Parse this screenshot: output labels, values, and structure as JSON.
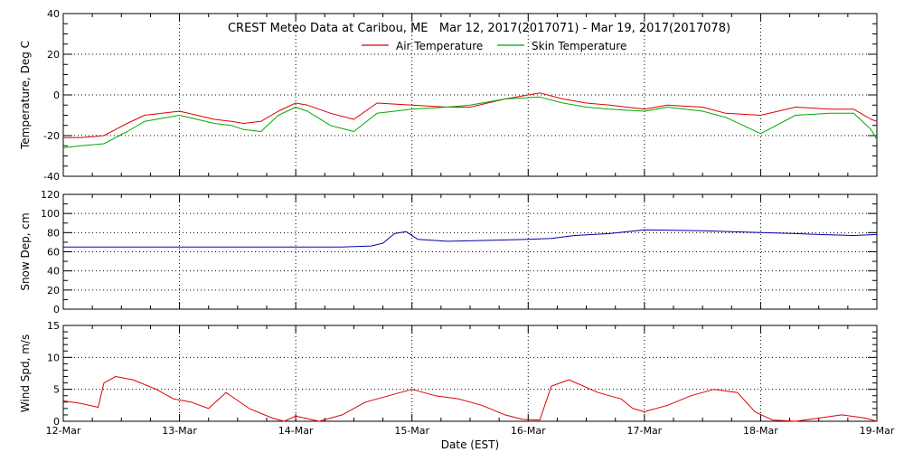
{
  "header": {
    "title": "CREST Meteo Data at Caribou, ME   Mar 12, 2017(2017071) - Mar 19, 2017(2017078)"
  },
  "colors": {
    "air": "#dd0000",
    "skin": "#00aa00",
    "snow": "#0000aa",
    "wind": "#dd0000",
    "axis": "#000000"
  },
  "chart_data": [
    {
      "type": "line",
      "ylabel": "Temperature, Deg C",
      "xlabel": "",
      "ylim": [
        -40,
        40
      ],
      "yticks": [
        "-40",
        "-20",
        "0",
        "20",
        "40"
      ],
      "x": [
        0,
        0.15,
        0.35,
        0.55,
        0.7,
        1.0,
        1.3,
        1.45,
        1.55,
        1.7,
        1.85,
        2.0,
        2.1,
        2.3,
        2.5,
        2.7,
        3.0,
        3.3,
        3.5,
        3.8,
        4.1,
        4.3,
        4.5,
        4.7,
        5.0,
        5.2,
        5.5,
        5.7,
        6.0,
        6.3,
        6.6,
        6.8,
        6.95,
        7.0
      ],
      "series": [
        {
          "name": "Air Temperature",
          "values": [
            -21,
            -21,
            -20,
            -14,
            -10,
            -8,
            -12,
            -13,
            -14,
            -13,
            -8,
            -4,
            -5,
            -9,
            -12,
            -4,
            -5,
            -6,
            -6,
            -2,
            1,
            -2,
            -4,
            -5,
            -7,
            -5,
            -6,
            -9,
            -10,
            -6,
            -7,
            -7,
            -12,
            -13
          ]
        },
        {
          "name": "Skin Temperature",
          "values": [
            -26,
            -25,
            -24,
            -18,
            -13,
            -10,
            -14,
            -15,
            -17,
            -18,
            -10,
            -6,
            -8,
            -15,
            -18,
            -9,
            -7,
            -6,
            -5,
            -2,
            -1,
            -4,
            -6,
            -7,
            -8,
            -6,
            -8,
            -11,
            -19,
            -10,
            -9,
            -9,
            -17,
            -22
          ]
        }
      ]
    },
    {
      "type": "line",
      "ylabel": "Snow Dep, cm",
      "xlabel": "",
      "ylim": [
        0,
        120
      ],
      "yticks": [
        "0",
        "20",
        "40",
        "60",
        "80",
        "100",
        "120"
      ],
      "x": [
        0,
        1.0,
        2.0,
        2.4,
        2.65,
        2.75,
        2.85,
        2.95,
        3.05,
        3.3,
        3.7,
        4.0,
        4.2,
        4.4,
        4.7,
        5.0,
        5.5,
        6.0,
        6.3,
        6.5,
        6.8,
        7.0
      ],
      "series": [
        {
          "name": "",
          "values": [
            65,
            65,
            65,
            65,
            66,
            69,
            79,
            81,
            73,
            71,
            72,
            73,
            74,
            77,
            79,
            83,
            82,
            80,
            79,
            78,
            77,
            78
          ]
        }
      ]
    },
    {
      "type": "line",
      "ylabel": "Wind Spd, m/s",
      "xlabel": "Date (EST)",
      "ylim": [
        0,
        15
      ],
      "yticks": [
        "0",
        "5",
        "10",
        "15"
      ],
      "categories": [
        "12-Mar",
        "13-Mar",
        "14-Mar",
        "15-Mar",
        "16-Mar",
        "17-Mar",
        "18-Mar",
        "19-Mar"
      ],
      "x": [
        0,
        0.15,
        0.3,
        0.35,
        0.45,
        0.6,
        0.8,
        0.95,
        1.1,
        1.25,
        1.4,
        1.6,
        1.8,
        1.9,
        2.0,
        2.2,
        2.4,
        2.6,
        2.8,
        3.0,
        3.2,
        3.4,
        3.6,
        3.8,
        3.95,
        4.1,
        4.2,
        4.35,
        4.6,
        4.8,
        4.9,
        5.0,
        5.2,
        5.4,
        5.6,
        5.8,
        5.95,
        6.1,
        6.3,
        6.5,
        6.7,
        6.9,
        7.0
      ],
      "series": [
        {
          "name": "",
          "values": [
            3.2,
            2.8,
            2.2,
            6,
            7,
            6.5,
            5,
            3.5,
            3,
            2,
            4.5,
            2,
            0.5,
            0,
            0.8,
            0,
            1,
            3,
            4,
            5,
            4,
            3.5,
            2.5,
            1,
            0.3,
            0.2,
            5.5,
            6.5,
            4.5,
            3.5,
            2,
            1.5,
            2.5,
            4,
            5,
            4.5,
            1.5,
            0.2,
            0,
            0.5,
            1,
            0.5,
            0
          ]
        }
      ]
    }
  ]
}
